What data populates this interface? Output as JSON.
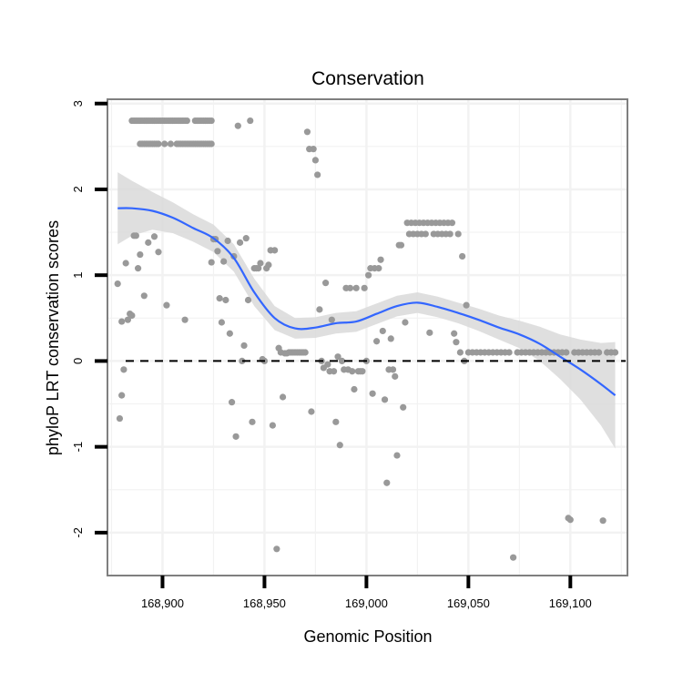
{
  "chart_data": {
    "type": "scatter",
    "title": "Conservation",
    "xlabel": "Genomic Position",
    "ylabel": "phyloP LRT conservation scores",
    "xlim": [
      168873,
      169128
    ],
    "ylim": [
      -2.5,
      3.05
    ],
    "x_ticks": [
      168900,
      168950,
      169000,
      169050,
      169100
    ],
    "x_tick_labels": [
      "168,900",
      "168,950",
      "169,000",
      "169,050",
      "169,100"
    ],
    "y_ticks": [
      -2,
      -1,
      0,
      1,
      2,
      3
    ],
    "y_tick_labels": [
      "-2",
      "-1",
      "0",
      "1",
      "2",
      "3"
    ],
    "reference_line": {
      "y": 0,
      "style": "dashed"
    },
    "colors": {
      "points": "#999999",
      "smooth": "#3366ff",
      "band": "#d9d9d9",
      "grid": "#f2f2f2",
      "frame": "#7f7f7f"
    },
    "points": [
      {
        "x": 168878,
        "y": 0.9
      },
      {
        "x": 168879,
        "y": -0.67
      },
      {
        "x": 168880,
        "y": -0.4
      },
      {
        "x": 168880,
        "y": 0.46
      },
      {
        "x": 168881,
        "y": -0.1
      },
      {
        "x": 168882,
        "y": 1.14
      },
      {
        "x": 168883,
        "y": 0.48
      },
      {
        "x": 168884,
        "y": 0.55
      },
      {
        "x": 168885,
        "y": 0.53
      },
      {
        "x": 168886,
        "y": 1.46
      },
      {
        "x": 168887,
        "y": 1.46
      },
      {
        "x": 168888,
        "y": 1.08
      },
      {
        "x": 168889,
        "y": 1.24
      },
      {
        "x": 168891,
        "y": 0.76
      },
      {
        "x": 168893,
        "y": 1.38
      },
      {
        "x": 168896,
        "y": 1.45
      },
      {
        "x": 168898,
        "y": 1.27
      },
      {
        "x": 168902,
        "y": 0.65
      },
      {
        "x": 168911,
        "y": 0.48
      },
      {
        "x": 168924,
        "y": 1.15
      },
      {
        "x": 168925,
        "y": 1.42
      },
      {
        "x": 168926,
        "y": 1.42
      },
      {
        "x": 168927,
        "y": 1.28
      },
      {
        "x": 168928,
        "y": 0.73
      },
      {
        "x": 168929,
        "y": 0.45
      },
      {
        "x": 168930,
        "y": 1.16
      },
      {
        "x": 168931,
        "y": 0.71
      },
      {
        "x": 168932,
        "y": 1.4
      },
      {
        "x": 168933,
        "y": 0.32
      },
      {
        "x": 168934,
        "y": -0.48
      },
      {
        "x": 168935,
        "y": 1.22
      },
      {
        "x": 168936,
        "y": -0.88
      },
      {
        "x": 168937,
        "y": 2.74
      },
      {
        "x": 168938,
        "y": 1.38
      },
      {
        "x": 168939,
        "y": 0.0
      },
      {
        "x": 168940,
        "y": 0.18
      },
      {
        "x": 168941,
        "y": 1.43
      },
      {
        "x": 168942,
        "y": 0.71
      },
      {
        "x": 168943,
        "y": 2.8
      },
      {
        "x": 168944,
        "y": -0.71
      },
      {
        "x": 168945,
        "y": 1.08
      },
      {
        "x": 168946,
        "y": 1.08
      },
      {
        "x": 168947,
        "y": 1.08
      },
      {
        "x": 168948,
        "y": 1.14
      },
      {
        "x": 168949,
        "y": 0.02
      },
      {
        "x": 168950,
        "y": 0.0
      },
      {
        "x": 168951,
        "y": 1.08
      },
      {
        "x": 168952,
        "y": 1.12
      },
      {
        "x": 168953,
        "y": 1.29
      },
      {
        "x": 168954,
        "y": -0.75
      },
      {
        "x": 168955,
        "y": 1.29
      },
      {
        "x": 168956,
        "y": -2.19
      },
      {
        "x": 168957,
        "y": 0.15
      },
      {
        "x": 168958,
        "y": 0.1
      },
      {
        "x": 168959,
        "y": -0.42
      },
      {
        "x": 168960,
        "y": 0.09
      },
      {
        "x": 168961,
        "y": 0.09
      },
      {
        "x": 168962,
        "y": 0.1
      },
      {
        "x": 168963,
        "y": 0.1
      },
      {
        "x": 168964,
        "y": 0.1
      },
      {
        "x": 168965,
        "y": 0.1
      },
      {
        "x": 168966,
        "y": 0.1
      },
      {
        "x": 168967,
        "y": 0.1
      },
      {
        "x": 168968,
        "y": 0.1
      },
      {
        "x": 168969,
        "y": 0.1
      },
      {
        "x": 168970,
        "y": 0.1
      },
      {
        "x": 168971,
        "y": 2.67
      },
      {
        "x": 168972,
        "y": 2.47
      },
      {
        "x": 168973,
        "y": -0.59
      },
      {
        "x": 168974,
        "y": 2.47
      },
      {
        "x": 168975,
        "y": 2.34
      },
      {
        "x": 168976,
        "y": 2.17
      },
      {
        "x": 168977,
        "y": 0.6
      },
      {
        "x": 168978,
        "y": 0.0
      },
      {
        "x": 168979,
        "y": -0.08
      },
      {
        "x": 168980,
        "y": 0.91
      },
      {
        "x": 168981,
        "y": -0.04
      },
      {
        "x": 168982,
        "y": -0.12
      },
      {
        "x": 168983,
        "y": 0.48
      },
      {
        "x": 168984,
        "y": -0.12
      },
      {
        "x": 168985,
        "y": -0.71
      },
      {
        "x": 168986,
        "y": 0.05
      },
      {
        "x": 168987,
        "y": -0.98
      },
      {
        "x": 168988,
        "y": 0.0
      },
      {
        "x": 168989,
        "y": -0.1
      },
      {
        "x": 168990,
        "y": 0.85
      },
      {
        "x": 168991,
        "y": -0.1
      },
      {
        "x": 168992,
        "y": 0.85
      },
      {
        "x": 168993,
        "y": -0.12
      },
      {
        "x": 168994,
        "y": -0.33
      },
      {
        "x": 168995,
        "y": 0.85
      },
      {
        "x": 168996,
        "y": -0.12
      },
      {
        "x": 168997,
        "y": -0.12
      },
      {
        "x": 168998,
        "y": -0.12
      },
      {
        "x": 168999,
        "y": 0.85
      },
      {
        "x": 169000,
        "y": 0.0
      },
      {
        "x": 169001,
        "y": 1.0
      },
      {
        "x": 169002,
        "y": 1.08
      },
      {
        "x": 169003,
        "y": -0.38
      },
      {
        "x": 169004,
        "y": 1.08
      },
      {
        "x": 169005,
        "y": 0.23
      },
      {
        "x": 169006,
        "y": 1.08
      },
      {
        "x": 169007,
        "y": 1.18
      },
      {
        "x": 169008,
        "y": 0.35
      },
      {
        "x": 169009,
        "y": -0.45
      },
      {
        "x": 169010,
        "y": -1.42
      },
      {
        "x": 169011,
        "y": -0.1
      },
      {
        "x": 169012,
        "y": 0.26
      },
      {
        "x": 169013,
        "y": -0.1
      },
      {
        "x": 169014,
        "y": -0.18
      },
      {
        "x": 169015,
        "y": -1.1
      },
      {
        "x": 169016,
        "y": 1.35
      },
      {
        "x": 169017,
        "y": 1.35
      },
      {
        "x": 169018,
        "y": -0.54
      },
      {
        "x": 169019,
        "y": 0.45
      },
      {
        "x": 169020,
        "y": 1.61
      },
      {
        "x": 169021,
        "y": 1.48
      },
      {
        "x": 169022,
        "y": 1.61
      },
      {
        "x": 169023,
        "y": 1.48
      },
      {
        "x": 169024,
        "y": 1.61
      },
      {
        "x": 169025,
        "y": 1.48
      },
      {
        "x": 169026,
        "y": 1.61
      },
      {
        "x": 169027,
        "y": 1.48
      },
      {
        "x": 169028,
        "y": 1.61
      },
      {
        "x": 169029,
        "y": 1.48
      },
      {
        "x": 169030,
        "y": 1.61
      },
      {
        "x": 169031,
        "y": 0.33
      },
      {
        "x": 169032,
        "y": 1.61
      },
      {
        "x": 169033,
        "y": 1.48
      },
      {
        "x": 169034,
        "y": 1.61
      },
      {
        "x": 169035,
        "y": 1.48
      },
      {
        "x": 169036,
        "y": 1.61
      },
      {
        "x": 169037,
        "y": 1.48
      },
      {
        "x": 169038,
        "y": 1.61
      },
      {
        "x": 169039,
        "y": 1.48
      },
      {
        "x": 169040,
        "y": 1.61
      },
      {
        "x": 169041,
        "y": 1.48
      },
      {
        "x": 169042,
        "y": 1.61
      },
      {
        "x": 169043,
        "y": 0.32
      },
      {
        "x": 169044,
        "y": 0.22
      },
      {
        "x": 169045,
        "y": 1.48
      },
      {
        "x": 169046,
        "y": 0.1
      },
      {
        "x": 169047,
        "y": 1.22
      },
      {
        "x": 169048,
        "y": 0.0
      },
      {
        "x": 169049,
        "y": 0.65
      },
      {
        "x": 169050,
        "y": 0.1
      },
      {
        "x": 169052,
        "y": 0.1
      },
      {
        "x": 169054,
        "y": 0.1
      },
      {
        "x": 169056,
        "y": 0.1
      },
      {
        "x": 169058,
        "y": 0.1
      },
      {
        "x": 169060,
        "y": 0.1
      },
      {
        "x": 169062,
        "y": 0.1
      },
      {
        "x": 169064,
        "y": 0.1
      },
      {
        "x": 169066,
        "y": 0.1
      },
      {
        "x": 169068,
        "y": 0.1
      },
      {
        "x": 169070,
        "y": 0.1
      },
      {
        "x": 169072,
        "y": -2.29
      },
      {
        "x": 169074,
        "y": 0.1
      },
      {
        "x": 169076,
        "y": 0.1
      },
      {
        "x": 169078,
        "y": 0.1
      },
      {
        "x": 169080,
        "y": 0.1
      },
      {
        "x": 169082,
        "y": 0.1
      },
      {
        "x": 169084,
        "y": 0.1
      },
      {
        "x": 169086,
        "y": 0.1
      },
      {
        "x": 169088,
        "y": 0.1
      },
      {
        "x": 169090,
        "y": 0.1
      },
      {
        "x": 169092,
        "y": 0.1
      },
      {
        "x": 169094,
        "y": 0.1
      },
      {
        "x": 169096,
        "y": 0.1
      },
      {
        "x": 169098,
        "y": 0.1
      },
      {
        "x": 169099,
        "y": -1.83
      },
      {
        "x": 169100,
        "y": -1.85
      },
      {
        "x": 169102,
        "y": 0.1
      },
      {
        "x": 169104,
        "y": 0.1
      },
      {
        "x": 169106,
        "y": 0.1
      },
      {
        "x": 169108,
        "y": 0.1
      },
      {
        "x": 169110,
        "y": 0.1
      },
      {
        "x": 169112,
        "y": 0.1
      },
      {
        "x": 169114,
        "y": 0.1
      },
      {
        "x": 169116,
        "y": -1.86
      },
      {
        "x": 169118,
        "y": 0.1
      },
      {
        "x": 169120,
        "y": 0.1
      },
      {
        "x": 169122,
        "y": 0.1
      }
    ],
    "point_runs": [
      {
        "x_from": 168885,
        "x_to": 168912,
        "step": 1,
        "y": 2.8
      },
      {
        "x_from": 168889,
        "x_to": 168898,
        "step": 1,
        "y": 2.53
      },
      {
        "x_from": 168901,
        "x_to": 168904,
        "step": 3,
        "y": 2.53
      },
      {
        "x_from": 168907,
        "x_to": 168924,
        "step": 1,
        "y": 2.53
      },
      {
        "x_from": 168916,
        "x_to": 168924,
        "step": 1,
        "y": 2.8
      }
    ],
    "smooth": {
      "x": [
        168878,
        168885,
        168895,
        168905,
        168915,
        168925,
        168935,
        168945,
        168955,
        168965,
        168975,
        168985,
        168995,
        169005,
        169015,
        169025,
        169035,
        169045,
        169055,
        169065,
        169075,
        169085,
        169095,
        169105,
        169115,
        169122
      ],
      "y": [
        1.78,
        1.78,
        1.75,
        1.67,
        1.55,
        1.43,
        1.2,
        0.8,
        0.5,
        0.38,
        0.39,
        0.44,
        0.46,
        0.55,
        0.64,
        0.68,
        0.63,
        0.56,
        0.48,
        0.39,
        0.31,
        0.2,
        0.05,
        -0.1,
        -0.27,
        -0.4
      ],
      "band": [
        0.42,
        0.32,
        0.22,
        0.18,
        0.16,
        0.16,
        0.16,
        0.16,
        0.14,
        0.12,
        0.12,
        0.12,
        0.12,
        0.12,
        0.12,
        0.12,
        0.12,
        0.12,
        0.13,
        0.14,
        0.16,
        0.2,
        0.26,
        0.35,
        0.48,
        0.62
      ]
    }
  }
}
